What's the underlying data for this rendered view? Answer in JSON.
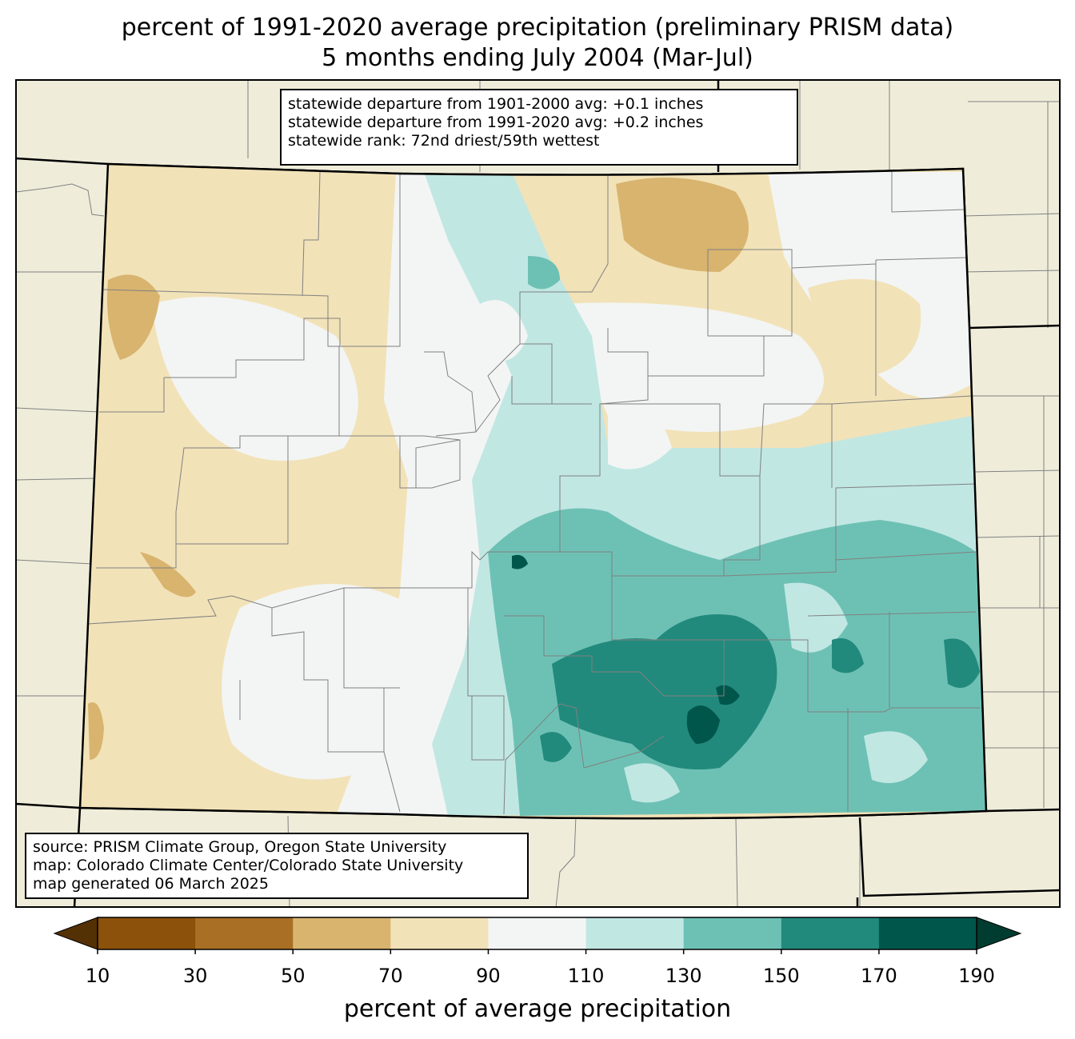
{
  "title": {
    "line1": "percent of 1991-2020 average precipitation (preliminary PRISM data)",
    "line2": "5 months ending July 2004 (Mar-Jul)"
  },
  "stats": {
    "line1": "statewide departure from 1901-2000 avg: +0.1 inches",
    "line2": "statewide departure from 1991-2020 avg: +0.2 inches",
    "line3": "statewide rank: 72nd driest/59th wettest"
  },
  "source": {
    "line1": "source: PRISM Climate Group, Oregon State University",
    "line2": "map: Colorado Climate Center/Colorado State University",
    "line3": "map generated 06 March 2025"
  },
  "colorbar": {
    "label": "percent of average precipitation",
    "ticks": [
      "10",
      "30",
      "50",
      "70",
      "90",
      "110",
      "130",
      "150",
      "170",
      "190"
    ],
    "low_extend_color": "#543005",
    "high_extend_color": "#003c30",
    "bins": [
      {
        "range": "10-30",
        "color": "#8c510a"
      },
      {
        "range": "30-50",
        "color": "#a96f24"
      },
      {
        "range": "50-70",
        "color": "#d8b46f"
      },
      {
        "range": "70-90",
        "color": "#f2e2b8"
      },
      {
        "range": "90-110",
        "color": "#f3f5f4"
      },
      {
        "range": "110-130",
        "color": "#c1e7e3"
      },
      {
        "range": "130-150",
        "color": "#6dc1b4"
      },
      {
        "range": "150-170",
        "color": "#228a7d"
      },
      {
        "range": "170-190",
        "color": "#01564c"
      }
    ]
  },
  "map": {
    "background_color": "#efedda",
    "county_line_color": "#808080",
    "state_line_color": "#000000"
  }
}
